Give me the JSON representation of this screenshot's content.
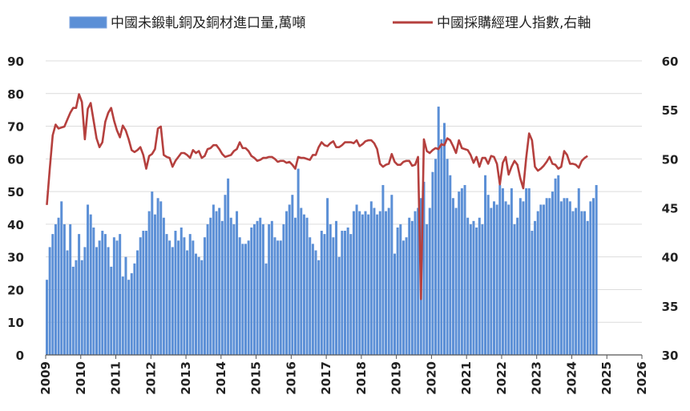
{
  "chart_data": {
    "type": "bar+line",
    "legend": [
      {
        "key": "bars",
        "label": "中國未鍛軋銅及銅材進口量,萬噸",
        "swatch": "bar",
        "color": "#5b8fd6"
      },
      {
        "key": "line",
        "label": "中國採購經理人指數,右軸",
        "swatch": "line",
        "color": "#b5403e"
      }
    ],
    "legend_position": "top",
    "x_axis": {
      "min": 2009,
      "max": 2026,
      "ticks": [
        "2009",
        "2010",
        "2011",
        "2012",
        "2013",
        "2014",
        "2015",
        "2016",
        "2017",
        "2018",
        "2019",
        "2020",
        "2021",
        "2022",
        "2023",
        "2024",
        "2025",
        "2026"
      ],
      "label_rotation": -90
    },
    "y_left": {
      "min": 0,
      "max": 90,
      "ticks": [
        "0",
        "10",
        "20",
        "30",
        "40",
        "50",
        "60",
        "70",
        "80",
        "90"
      ]
    },
    "y_right": {
      "min": 30,
      "max": 60,
      "ticks": [
        "30",
        "35",
        "40",
        "45",
        "50",
        "55",
        "60"
      ]
    },
    "grid": "horizontal",
    "series": [
      {
        "name": "中國未鍛軋銅及銅材進口量,萬噸",
        "kind": "bar",
        "axis": "left",
        "color": "#5b8fd6",
        "start": "2009-01",
        "frequency": "monthly",
        "values": [
          23,
          33,
          37,
          40,
          42,
          47,
          40,
          32,
          40,
          27,
          29,
          37,
          29,
          33,
          46,
          43,
          39,
          33,
          35,
          38,
          37,
          33,
          27,
          36,
          35,
          37,
          24,
          30,
          23,
          25,
          28,
          32,
          36,
          38,
          38,
          44,
          50,
          43,
          48,
          47,
          42,
          37,
          35,
          33,
          38,
          35,
          39,
          36,
          32,
          37,
          35,
          31,
          30,
          29,
          36,
          40,
          42,
          46,
          44,
          45,
          41,
          49,
          54,
          42,
          40,
          44,
          36,
          34,
          34,
          35,
          39,
          40,
          41,
          42,
          40,
          28,
          40,
          41,
          36,
          35,
          35,
          40,
          44,
          46,
          49,
          42,
          57,
          45,
          43,
          42,
          36,
          34,
          32,
          29,
          38,
          37,
          48,
          40,
          36,
          41,
          30,
          38,
          38,
          39,
          37,
          44,
          46,
          44,
          43,
          44,
          43,
          47,
          45,
          43,
          44,
          52,
          44,
          45,
          49,
          31,
          39,
          40,
          35,
          36,
          42,
          41,
          44,
          45,
          48,
          53,
          40,
          45,
          56,
          60,
          76,
          66,
          71,
          60,
          55,
          48,
          45,
          50,
          51,
          52,
          42,
          40,
          41,
          39,
          42,
          40,
          55,
          49,
          45,
          47,
          46,
          52,
          51,
          47,
          46,
          51,
          40,
          42,
          48,
          47,
          51,
          51,
          38,
          41,
          44,
          46,
          46,
          48,
          48,
          50,
          54,
          55,
          47,
          48,
          48,
          47,
          44,
          45,
          51,
          44,
          44,
          41,
          47,
          48,
          52
        ]
      },
      {
        "name": "中國採購經理人指數,右軸",
        "kind": "line",
        "axis": "right",
        "color": "#b5403e",
        "start": "2009-01",
        "frequency": "monthly",
        "values": [
          45.3,
          49.0,
          52.4,
          53.5,
          53.1,
          53.2,
          53.3,
          54.0,
          54.7,
          55.2,
          55.2,
          56.6,
          55.8,
          52.0,
          55.1,
          55.7,
          53.9,
          52.1,
          51.2,
          51.7,
          53.8,
          54.7,
          55.2,
          53.9,
          52.9,
          52.2,
          53.4,
          52.9,
          52.0,
          50.9,
          50.7,
          50.9,
          51.2,
          50.4,
          49.0,
          50.3,
          50.5,
          51.0,
          53.1,
          53.3,
          50.4,
          50.2,
          50.1,
          49.2,
          49.8,
          50.2,
          50.6,
          50.6,
          50.4,
          50.1,
          50.9,
          50.6,
          50.8,
          50.1,
          50.3,
          51.0,
          51.1,
          51.4,
          51.4,
          51.0,
          50.5,
          50.2,
          50.3,
          50.4,
          50.8,
          51.0,
          51.7,
          51.1,
          51.1,
          50.8,
          50.3,
          50.1,
          49.8,
          49.9,
          50.1,
          50.1,
          50.2,
          50.2,
          50.0,
          49.7,
          49.8,
          49.8,
          49.6,
          49.7,
          49.4,
          49.0,
          50.2,
          50.1,
          50.1,
          50.0,
          49.9,
          50.4,
          50.4,
          51.2,
          51.7,
          51.4,
          51.3,
          51.6,
          51.8,
          51.2,
          51.2,
          51.4,
          51.7,
          51.7,
          51.7,
          51.6,
          51.9,
          51.3,
          51.5,
          51.8,
          51.9,
          51.9,
          51.6,
          51.0,
          49.5,
          49.2,
          49.4,
          49.5,
          50.5,
          49.7,
          49.4,
          49.4,
          49.7,
          49.8,
          49.8,
          49.3,
          49.4,
          50.2,
          35.7,
          52.0,
          50.8,
          50.6,
          50.9,
          51.1,
          51.0,
          51.5,
          51.4,
          52.1,
          51.9,
          51.3,
          50.6,
          51.9,
          51.1,
          51.0,
          50.9,
          50.4,
          49.6,
          50.2,
          49.2,
          50.1,
          50.1,
          49.5,
          50.3,
          50.2,
          49.5,
          47.4,
          49.6,
          50.2,
          48.4,
          49.2,
          49.8,
          49.4,
          48.0,
          47.0,
          50.1,
          52.6,
          51.9,
          49.2,
          48.8,
          49.0,
          49.3,
          49.7,
          50.2,
          49.5,
          49.4,
          49.0,
          49.2,
          50.8,
          50.4,
          49.5,
          49.5,
          49.4,
          49.1,
          49.8,
          50.1,
          50.3
        ]
      }
    ]
  }
}
